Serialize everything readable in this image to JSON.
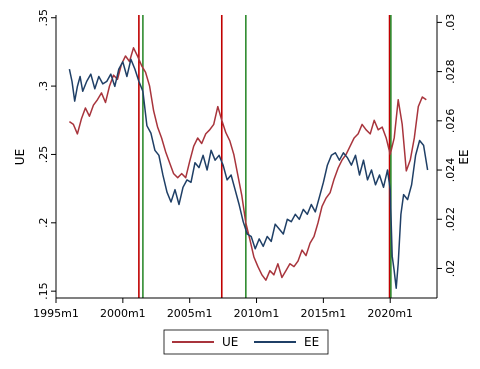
{
  "chart_data": {
    "type": "line",
    "title": "",
    "xlabel": "",
    "ylabel": "UE",
    "y2label": "EE",
    "x_range": [
      1995.0,
      2023.5
    ],
    "y_range": [
      0.145,
      0.352
    ],
    "y2_range": [
      0.0188,
      0.0303
    ],
    "x_ticks": [
      1995,
      2000,
      2005,
      2010,
      2015,
      2020
    ],
    "x_tick_labels": [
      "1995m1",
      "2000m1",
      "2005m1",
      "2010m1",
      "2015m1",
      "2020m1"
    ],
    "y_ticks": [
      0.15,
      0.2,
      0.25,
      0.3,
      0.35
    ],
    "y_tick_labels": [
      ".15",
      ".2",
      ".25",
      ".3",
      ".35"
    ],
    "y2_ticks": [
      0.02,
      0.022,
      0.024,
      0.026,
      0.028,
      0.03
    ],
    "y2_tick_labels": [
      ".02",
      ".022",
      ".024",
      ".026",
      ".028",
      ".03"
    ],
    "grid": false,
    "legend_position": "bottom",
    "vertical_lines": [
      {
        "x": 2001.2,
        "color": "#c00000"
      },
      {
        "x": 2001.5,
        "color": "#2e8b2e"
      },
      {
        "x": 2007.4,
        "color": "#c00000"
      },
      {
        "x": 2009.2,
        "color": "#2e8b2e"
      },
      {
        "x": 2019.95,
        "color": "#c00000"
      },
      {
        "x": 2020.05,
        "color": "#2e8b2e"
      }
    ],
    "series": [
      {
        "name": "UE",
        "axis": "left",
        "color": "#a8343c",
        "points": [
          [
            1996.0,
            0.274
          ],
          [
            1996.3,
            0.272
          ],
          [
            1996.6,
            0.265
          ],
          [
            1996.9,
            0.276
          ],
          [
            1997.2,
            0.284
          ],
          [
            1997.5,
            0.278
          ],
          [
            1997.8,
            0.286
          ],
          [
            1998.1,
            0.29
          ],
          [
            1998.4,
            0.295
          ],
          [
            1998.7,
            0.288
          ],
          [
            1999.0,
            0.3
          ],
          [
            1999.3,
            0.308
          ],
          [
            1999.6,
            0.305
          ],
          [
            1999.9,
            0.316
          ],
          [
            2000.2,
            0.322
          ],
          [
            2000.5,
            0.318
          ],
          [
            2000.8,
            0.328
          ],
          [
            2001.1,
            0.322
          ],
          [
            2001.4,
            0.315
          ],
          [
            2001.7,
            0.31
          ],
          [
            2002.0,
            0.3
          ],
          [
            2002.3,
            0.282
          ],
          [
            2002.6,
            0.27
          ],
          [
            2002.9,
            0.262
          ],
          [
            2003.2,
            0.252
          ],
          [
            2003.5,
            0.244
          ],
          [
            2003.8,
            0.236
          ],
          [
            2004.1,
            0.233
          ],
          [
            2004.4,
            0.236
          ],
          [
            2004.7,
            0.233
          ],
          [
            2005.0,
            0.245
          ],
          [
            2005.3,
            0.256
          ],
          [
            2005.6,
            0.262
          ],
          [
            2005.9,
            0.258
          ],
          [
            2006.2,
            0.265
          ],
          [
            2006.5,
            0.268
          ],
          [
            2006.8,
            0.272
          ],
          [
            2007.1,
            0.285
          ],
          [
            2007.4,
            0.275
          ],
          [
            2007.7,
            0.266
          ],
          [
            2008.0,
            0.26
          ],
          [
            2008.3,
            0.25
          ],
          [
            2008.6,
            0.235
          ],
          [
            2008.9,
            0.22
          ],
          [
            2009.2,
            0.2
          ],
          [
            2009.5,
            0.188
          ],
          [
            2009.8,
            0.175
          ],
          [
            2010.1,
            0.168
          ],
          [
            2010.4,
            0.162
          ],
          [
            2010.7,
            0.158
          ],
          [
            2011.0,
            0.165
          ],
          [
            2011.3,
            0.162
          ],
          [
            2011.6,
            0.17
          ],
          [
            2011.9,
            0.16
          ],
          [
            2012.2,
            0.165
          ],
          [
            2012.5,
            0.17
          ],
          [
            2012.8,
            0.168
          ],
          [
            2013.1,
            0.172
          ],
          [
            2013.4,
            0.18
          ],
          [
            2013.7,
            0.176
          ],
          [
            2014.0,
            0.185
          ],
          [
            2014.3,
            0.19
          ],
          [
            2014.6,
            0.2
          ],
          [
            2014.9,
            0.212
          ],
          [
            2015.2,
            0.218
          ],
          [
            2015.5,
            0.222
          ],
          [
            2015.8,
            0.232
          ],
          [
            2016.1,
            0.24
          ],
          [
            2016.4,
            0.246
          ],
          [
            2016.7,
            0.25
          ],
          [
            2017.0,
            0.256
          ],
          [
            2017.3,
            0.262
          ],
          [
            2017.6,
            0.265
          ],
          [
            2017.9,
            0.272
          ],
          [
            2018.2,
            0.268
          ],
          [
            2018.5,
            0.265
          ],
          [
            2018.8,
            0.275
          ],
          [
            2019.1,
            0.268
          ],
          [
            2019.4,
            0.27
          ],
          [
            2019.7,
            0.262
          ],
          [
            2020.0,
            0.25
          ],
          [
            2020.3,
            0.262
          ],
          [
            2020.6,
            0.29
          ],
          [
            2020.9,
            0.272
          ],
          [
            2021.2,
            0.238
          ],
          [
            2021.5,
            0.246
          ],
          [
            2021.8,
            0.262
          ],
          [
            2022.1,
            0.285
          ],
          [
            2022.4,
            0.292
          ],
          [
            2022.7,
            0.29
          ]
        ]
      },
      {
        "name": "EE",
        "axis": "right",
        "color": "#1f3f66",
        "points": [
          [
            1996.0,
            0.0281
          ],
          [
            1996.2,
            0.0276
          ],
          [
            1996.4,
            0.0268
          ],
          [
            1996.6,
            0.0274
          ],
          [
            1996.8,
            0.0278
          ],
          [
            1997.0,
            0.0272
          ],
          [
            1997.3,
            0.0276
          ],
          [
            1997.6,
            0.0279
          ],
          [
            1997.9,
            0.0273
          ],
          [
            1998.2,
            0.0278
          ],
          [
            1998.5,
            0.0275
          ],
          [
            1998.8,
            0.0276
          ],
          [
            1999.1,
            0.0279
          ],
          [
            1999.4,
            0.0274
          ],
          [
            1999.7,
            0.0281
          ],
          [
            2000.0,
            0.0284
          ],
          [
            2000.3,
            0.0278
          ],
          [
            2000.6,
            0.0285
          ],
          [
            2000.9,
            0.0281
          ],
          [
            2001.2,
            0.0276
          ],
          [
            2001.5,
            0.0272
          ],
          [
            2001.8,
            0.0258
          ],
          [
            2002.1,
            0.0255
          ],
          [
            2002.4,
            0.0248
          ],
          [
            2002.7,
            0.0246
          ],
          [
            2003.0,
            0.0238
          ],
          [
            2003.3,
            0.0231
          ],
          [
            2003.6,
            0.0227
          ],
          [
            2003.9,
            0.0232
          ],
          [
            2004.2,
            0.0226
          ],
          [
            2004.5,
            0.0233
          ],
          [
            2004.8,
            0.0236
          ],
          [
            2005.1,
            0.0235
          ],
          [
            2005.4,
            0.0243
          ],
          [
            2005.7,
            0.0241
          ],
          [
            2006.0,
            0.0246
          ],
          [
            2006.3,
            0.024
          ],
          [
            2006.6,
            0.0248
          ],
          [
            2006.9,
            0.0244
          ],
          [
            2007.2,
            0.0246
          ],
          [
            2007.5,
            0.0242
          ],
          [
            2007.8,
            0.0236
          ],
          [
            2008.1,
            0.0238
          ],
          [
            2008.4,
            0.0232
          ],
          [
            2008.7,
            0.0226
          ],
          [
            2009.0,
            0.0219
          ],
          [
            2009.3,
            0.0214
          ],
          [
            2009.6,
            0.0213
          ],
          [
            2009.9,
            0.0208
          ],
          [
            2010.2,
            0.0212
          ],
          [
            2010.5,
            0.0209
          ],
          [
            2010.8,
            0.0213
          ],
          [
            2011.1,
            0.0211
          ],
          [
            2011.4,
            0.0218
          ],
          [
            2011.7,
            0.0216
          ],
          [
            2012.0,
            0.0214
          ],
          [
            2012.3,
            0.022
          ],
          [
            2012.6,
            0.0219
          ],
          [
            2012.9,
            0.0222
          ],
          [
            2013.2,
            0.022
          ],
          [
            2013.5,
            0.0224
          ],
          [
            2013.8,
            0.0222
          ],
          [
            2014.1,
            0.0226
          ],
          [
            2014.4,
            0.0223
          ],
          [
            2014.7,
            0.0229
          ],
          [
            2015.0,
            0.0235
          ],
          [
            2015.3,
            0.0242
          ],
          [
            2015.6,
            0.0246
          ],
          [
            2015.9,
            0.0247
          ],
          [
            2016.2,
            0.0244
          ],
          [
            2016.5,
            0.0247
          ],
          [
            2016.8,
            0.0245
          ],
          [
            2017.1,
            0.0242
          ],
          [
            2017.4,
            0.0246
          ],
          [
            2017.7,
            0.0238
          ],
          [
            2018.0,
            0.0244
          ],
          [
            2018.3,
            0.0236
          ],
          [
            2018.6,
            0.024
          ],
          [
            2018.9,
            0.0234
          ],
          [
            2019.2,
            0.0238
          ],
          [
            2019.5,
            0.0233
          ],
          [
            2019.8,
            0.024
          ],
          [
            2020.0,
            0.0232
          ],
          [
            2020.15,
            0.0205
          ],
          [
            2020.3,
            0.0199
          ],
          [
            2020.45,
            0.0192
          ],
          [
            2020.6,
            0.0202
          ],
          [
            2020.8,
            0.0222
          ],
          [
            2021.0,
            0.023
          ],
          [
            2021.3,
            0.0228
          ],
          [
            2021.6,
            0.0234
          ],
          [
            2021.9,
            0.0246
          ],
          [
            2022.2,
            0.0252
          ],
          [
            2022.5,
            0.025
          ],
          [
            2022.8,
            0.024
          ]
        ]
      }
    ]
  }
}
